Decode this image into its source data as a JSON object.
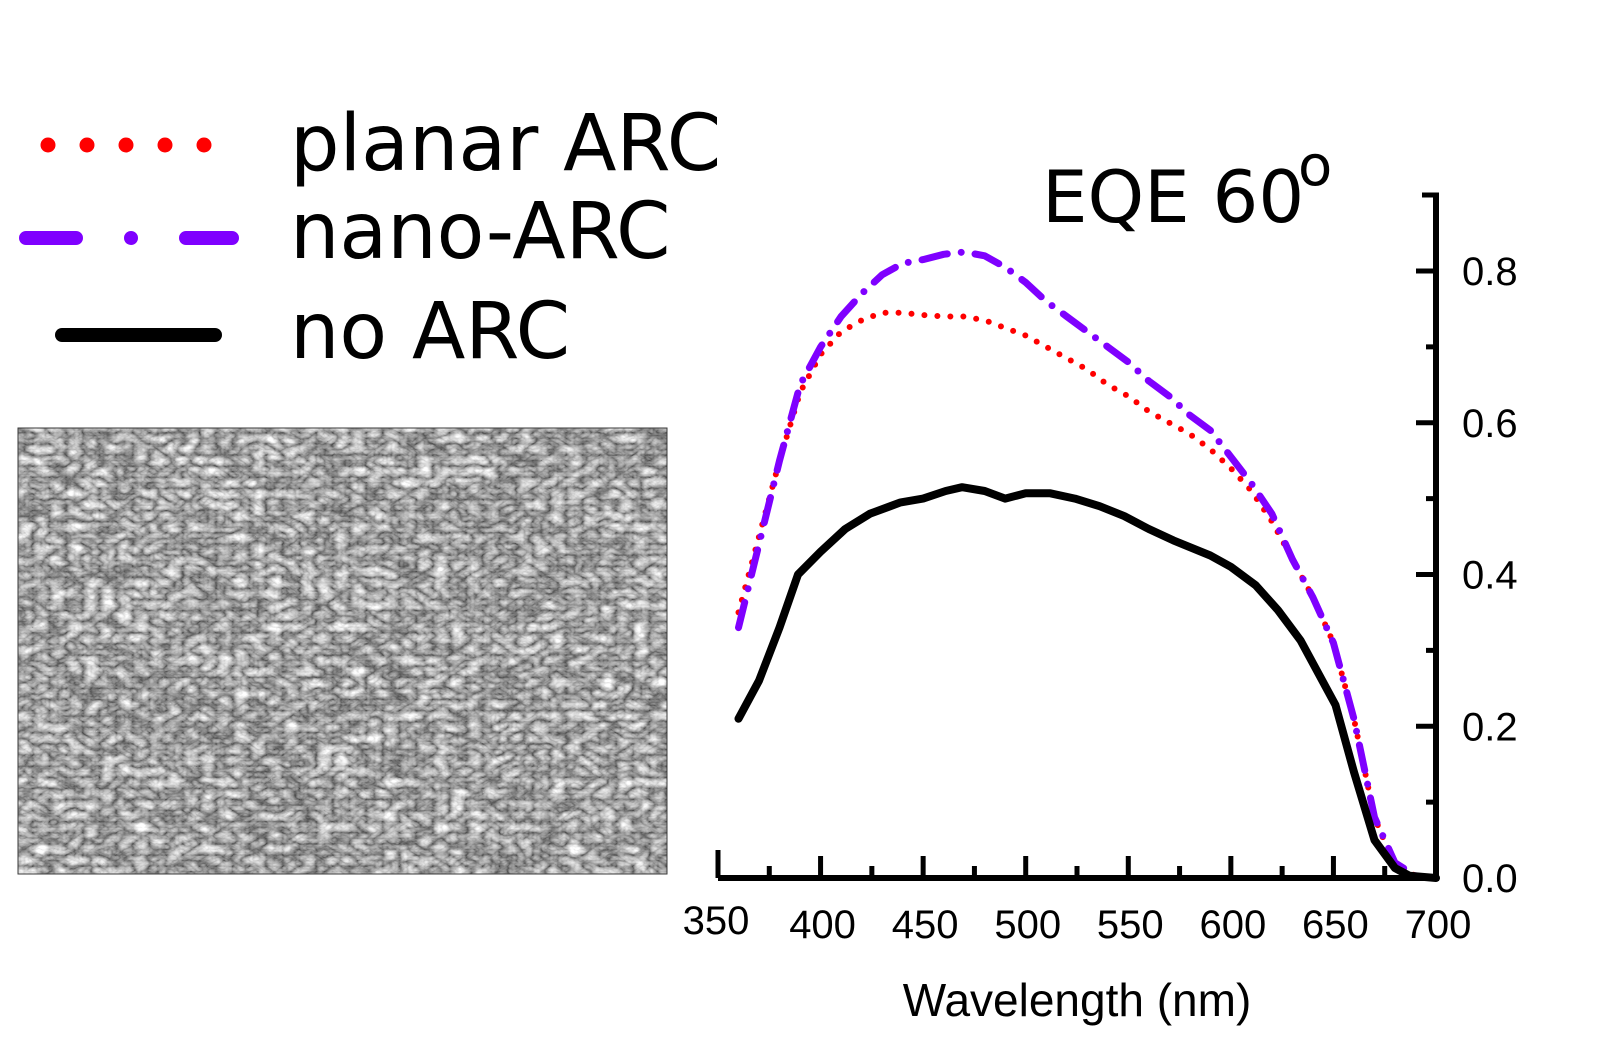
{
  "figure": {
    "sem_image": {
      "description_label": "SEM micrograph of nano-ARC surface"
    }
  },
  "chart_data": {
    "type": "line",
    "title": "EQE 60",
    "title_superscript": "o",
    "xlabel": "Wavelength (nm)",
    "ylabel": "",
    "xlim": [
      350,
      700
    ],
    "ylim": [
      0.0,
      0.9
    ],
    "x_ticks": [
      350,
      400,
      450,
      500,
      550,
      600,
      650,
      700
    ],
    "x_tick_labels": [
      "350",
      "400",
      "450",
      "500",
      "550",
      "600",
      "650",
      "700"
    ],
    "x_minor_ticks": [
      375,
      425,
      475,
      525,
      575,
      625,
      675
    ],
    "y_ticks": [
      0.0,
      0.2,
      0.4,
      0.6,
      0.8
    ],
    "y_tick_labels": [
      "0.0",
      "0.2",
      "0.4",
      "0.6",
      "0.8"
    ],
    "y_minor_ticks": [
      0.1,
      0.3,
      0.5,
      0.7
    ],
    "y_axis_side": "right",
    "grid": false,
    "legend_position": "top-left",
    "series": [
      {
        "name": "planar ARC",
        "color": "#ff0000",
        "style": "dotted",
        "x": [
          360,
          370,
          380,
          390,
          400,
          410,
          420,
          430,
          440,
          450,
          460,
          470,
          480,
          490,
          500,
          510,
          520,
          530,
          540,
          550,
          560,
          570,
          580,
          590,
          600,
          610,
          620,
          630,
          640,
          650,
          660,
          670,
          680,
          690,
          700
        ],
        "y": [
          0.35,
          0.45,
          0.55,
          0.64,
          0.69,
          0.72,
          0.735,
          0.745,
          0.745,
          0.742,
          0.74,
          0.74,
          0.735,
          0.725,
          0.715,
          0.7,
          0.685,
          0.67,
          0.65,
          0.635,
          0.615,
          0.6,
          0.585,
          0.565,
          0.54,
          0.51,
          0.47,
          0.42,
          0.37,
          0.31,
          0.21,
          0.08,
          0.015,
          0.003,
          0.0
        ]
      },
      {
        "name": "nano-ARC",
        "color": "#7f00ff",
        "style": "dash-dot",
        "x": [
          360,
          370,
          380,
          390,
          400,
          410,
          420,
          430,
          440,
          450,
          460,
          470,
          480,
          490,
          500,
          510,
          520,
          530,
          540,
          550,
          560,
          570,
          580,
          590,
          600,
          610,
          620,
          630,
          640,
          650,
          660,
          670,
          680,
          690,
          700
        ],
        "y": [
          0.33,
          0.44,
          0.55,
          0.65,
          0.7,
          0.74,
          0.77,
          0.795,
          0.81,
          0.815,
          0.822,
          0.825,
          0.82,
          0.805,
          0.785,
          0.76,
          0.74,
          0.72,
          0.7,
          0.68,
          0.655,
          0.635,
          0.61,
          0.59,
          0.555,
          0.52,
          0.48,
          0.42,
          0.37,
          0.31,
          0.21,
          0.08,
          0.02,
          0.003,
          0.0
        ]
      },
      {
        "name": "no ARC",
        "color": "#000000",
        "style": "solid",
        "x": [
          360,
          370,
          380,
          389,
          400,
          412,
          424,
          439,
          450,
          461,
          469,
          480,
          490,
          500,
          512,
          524,
          536,
          548,
          560,
          572,
          590,
          600,
          612,
          623,
          634,
          651,
          660,
          670,
          680,
          687,
          700
        ],
        "y": [
          0.21,
          0.26,
          0.33,
          0.4,
          0.43,
          0.46,
          0.48,
          0.495,
          0.5,
          0.51,
          0.515,
          0.51,
          0.5,
          0.507,
          0.507,
          0.5,
          0.49,
          0.477,
          0.46,
          0.445,
          0.425,
          0.41,
          0.386,
          0.353,
          0.313,
          0.228,
          0.14,
          0.05,
          0.013,
          0.003,
          0.0
        ]
      }
    ]
  }
}
